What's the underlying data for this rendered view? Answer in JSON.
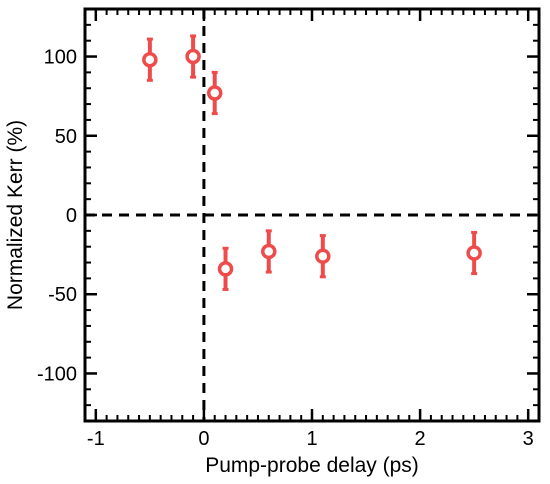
{
  "chart_data": {
    "type": "scatter",
    "xlabel": "Pump-probe delay (ps)",
    "ylabel": "Normalized Kerr (%)",
    "xlim": [
      -1.1,
      3.1
    ],
    "ylim": [
      -130,
      130
    ],
    "x_ticks": [
      -1,
      0,
      1,
      2,
      3
    ],
    "x_tick_labels": [
      "-1",
      "0",
      "1",
      "2",
      "3"
    ],
    "y_ticks": [
      -100,
      -50,
      0,
      50,
      100
    ],
    "y_tick_labels": [
      "-100",
      "-50",
      "0",
      "50",
      "100"
    ],
    "x_minor_step": 0.1,
    "y_minor_step": 10,
    "grid": false,
    "reference_lines": {
      "x": 0,
      "y": 0,
      "style": "dashed"
    },
    "marker_color": "#ef4b4b",
    "points": [
      {
        "x": -0.5,
        "y": 98,
        "err": 13
      },
      {
        "x": -0.1,
        "y": 100,
        "err": 13
      },
      {
        "x": 0.1,
        "y": 77,
        "err": 13
      },
      {
        "x": 0.2,
        "y": -34,
        "err": 13
      },
      {
        "x": 0.6,
        "y": -23,
        "err": 13
      },
      {
        "x": 1.1,
        "y": -26,
        "err": 13
      },
      {
        "x": 2.5,
        "y": -24,
        "err": 13
      }
    ]
  }
}
